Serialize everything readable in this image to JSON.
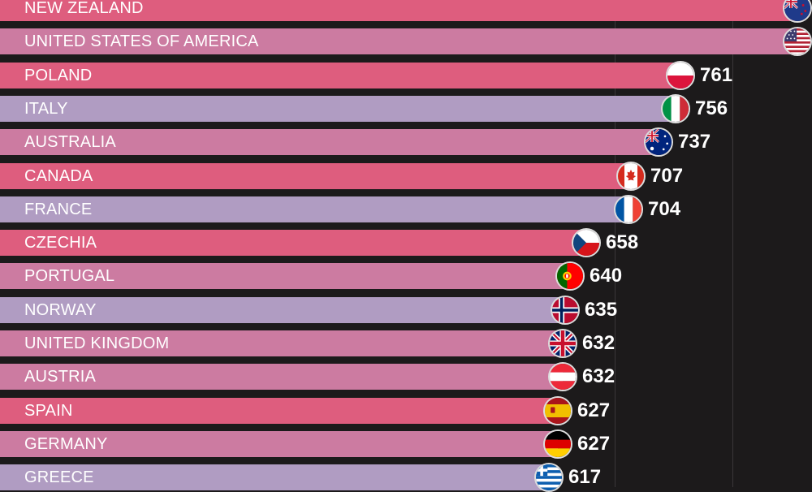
{
  "chart_data": {
    "type": "bar",
    "orientation": "horizontal",
    "grid": true,
    "xlim": [
      0,
      880
    ],
    "colors": {
      "pink": "#de5d7e",
      "mauve": "#cc7ba1",
      "lavender": "#b09cc2",
      "background": "#1c1a1b"
    },
    "rows": [
      {
        "category": "NEW ZEALAND",
        "value": null,
        "flag_icon": "new-zealand-flag-icon",
        "color": "#de5d7e"
      },
      {
        "category": "UNITED STATES OF AMERICA",
        "value": null,
        "flag_icon": "usa-flag-icon",
        "color": "#cc7ba1"
      },
      {
        "category": "POLAND",
        "value": 761,
        "flag_icon": "poland-flag-icon",
        "color": "#de5d7e"
      },
      {
        "category": "ITALY",
        "value": 756,
        "flag_icon": "italy-flag-icon",
        "color": "#b09cc2"
      },
      {
        "category": "AUSTRALIA",
        "value": 737,
        "flag_icon": "australia-flag-icon",
        "color": "#cc7ba1"
      },
      {
        "category": "CANADA",
        "value": 707,
        "flag_icon": "canada-flag-icon",
        "color": "#de5d7e"
      },
      {
        "category": "FRANCE",
        "value": 704,
        "flag_icon": "france-flag-icon",
        "color": "#b09cc2"
      },
      {
        "category": "CZECHIA",
        "value": 658,
        "flag_icon": "czechia-flag-icon",
        "color": "#de5d7e"
      },
      {
        "category": "PORTUGAL",
        "value": 640,
        "flag_icon": "portugal-flag-icon",
        "color": "#cc7ba1"
      },
      {
        "category": "NORWAY",
        "value": 635,
        "flag_icon": "norway-flag-icon",
        "color": "#b09cc2"
      },
      {
        "category": "UNITED KINGDOM",
        "value": 632,
        "flag_icon": "uk-flag-icon",
        "color": "#cc7ba1"
      },
      {
        "category": "AUSTRIA",
        "value": 632,
        "flag_icon": "austria-flag-icon",
        "color": "#cc7ba1"
      },
      {
        "category": "SPAIN",
        "value": 627,
        "flag_icon": "spain-flag-icon",
        "color": "#de5d7e"
      },
      {
        "category": "GERMANY",
        "value": 627,
        "flag_icon": "germany-flag-icon",
        "color": "#cc7ba1"
      },
      {
        "category": "GREECE",
        "value": 617,
        "flag_icon": "greece-flag-icon",
        "color": "#b09cc2"
      }
    ]
  }
}
